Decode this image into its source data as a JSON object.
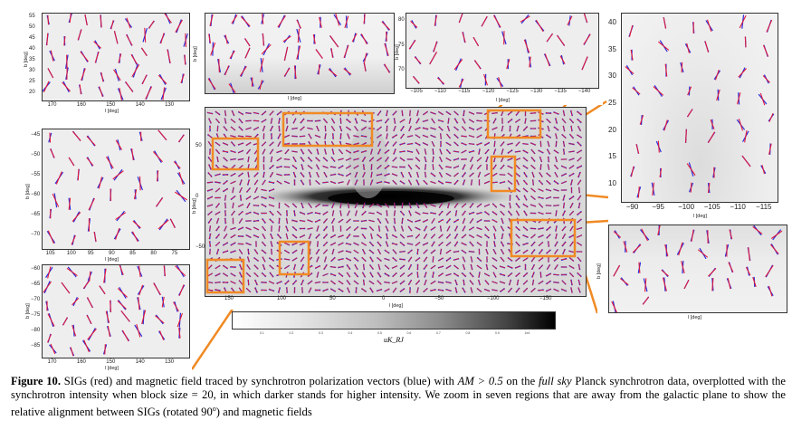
{
  "caption": {
    "label": "Figure 10.",
    "text_1": " SIGs (red) and magnetic field traced by synchrotron polarization vectors (blue) with ",
    "math_am": "AM > 0.5",
    "text_2": " on the ",
    "italic_full_sky": "full sky",
    "text_3": " Planck synchrotron data, overplotted with the synchrotron intensity when block size = 20, in which darker stands for higher intensity. We zoom in seven regions that are away from the galactic plane to show the relative alignment between SIGs (rotated 90",
    "degree_sup": "o",
    "text_4": ") and magnetic fields"
  },
  "colors": {
    "sig": "#e0183c",
    "bfield": "#2a2ad8",
    "highlight": "#f08a24"
  },
  "main_panel": {
    "xlabel": "l [deg]",
    "ylabel": "b [deg]",
    "xticks": [
      "150",
      "100",
      "50",
      "0",
      "−50",
      "−100",
      "−150"
    ],
    "yticks": [
      "50",
      "0",
      "−50"
    ]
  },
  "colorbar": {
    "label": "uK_RJ",
    "ticks": [
      "0.1",
      "0.2",
      "0.3",
      "0.4",
      "0.5",
      "0.6",
      "0.7",
      "0.8",
      "0.9",
      "1e4"
    ]
  },
  "panels": {
    "top_left": {
      "xlabel": "l [deg]",
      "ylabel": "b [deg]",
      "xticks": [
        "170",
        "160",
        "150",
        "140",
        "130"
      ],
      "yticks": [
        "55",
        "50",
        "45",
        "40",
        "35",
        "30",
        "25",
        "20"
      ]
    },
    "top_mid": {
      "xlabel": "l [deg]",
      "ylabel": "b [deg]",
      "xticks": [],
      "yticks": []
    },
    "top_right": {
      "xlabel": "l [deg]",
      "ylabel": "b [deg]",
      "xticks": [
        "−105",
        "−110",
        "−115",
        "−120",
        "−125",
        "−130",
        "−135",
        "−140"
      ],
      "yticks": [
        "80",
        "75",
        "70"
      ]
    },
    "far_right": {
      "xlabel": "l [deg]",
      "ylabel": "b [deg]",
      "xticks": [
        "−90",
        "−95",
        "−100",
        "−105",
        "−110",
        "−115"
      ],
      "yticks": [
        "40",
        "35",
        "30",
        "25",
        "20",
        "15",
        "10"
      ]
    },
    "mid_left": {
      "xlabel": "l [deg]",
      "ylabel": "b [deg]",
      "xticks": [
        "105",
        "100",
        "95",
        "90",
        "85",
        "80",
        "75"
      ],
      "yticks": [
        "−45",
        "−50",
        "−55",
        "−60",
        "−65",
        "−70"
      ]
    },
    "bottom_left": {
      "xlabel": "l [deg]",
      "ylabel": "b [deg]",
      "xticks": [
        "170",
        "160",
        "150",
        "140",
        "130"
      ],
      "yticks": [
        "−60",
        "−65",
        "−70",
        "−75",
        "−80",
        "−85"
      ]
    },
    "bottom_right": {
      "xlabel": "l [deg]",
      "ylabel": "b [deg]",
      "xticks": [],
      "yticks": []
    }
  }
}
